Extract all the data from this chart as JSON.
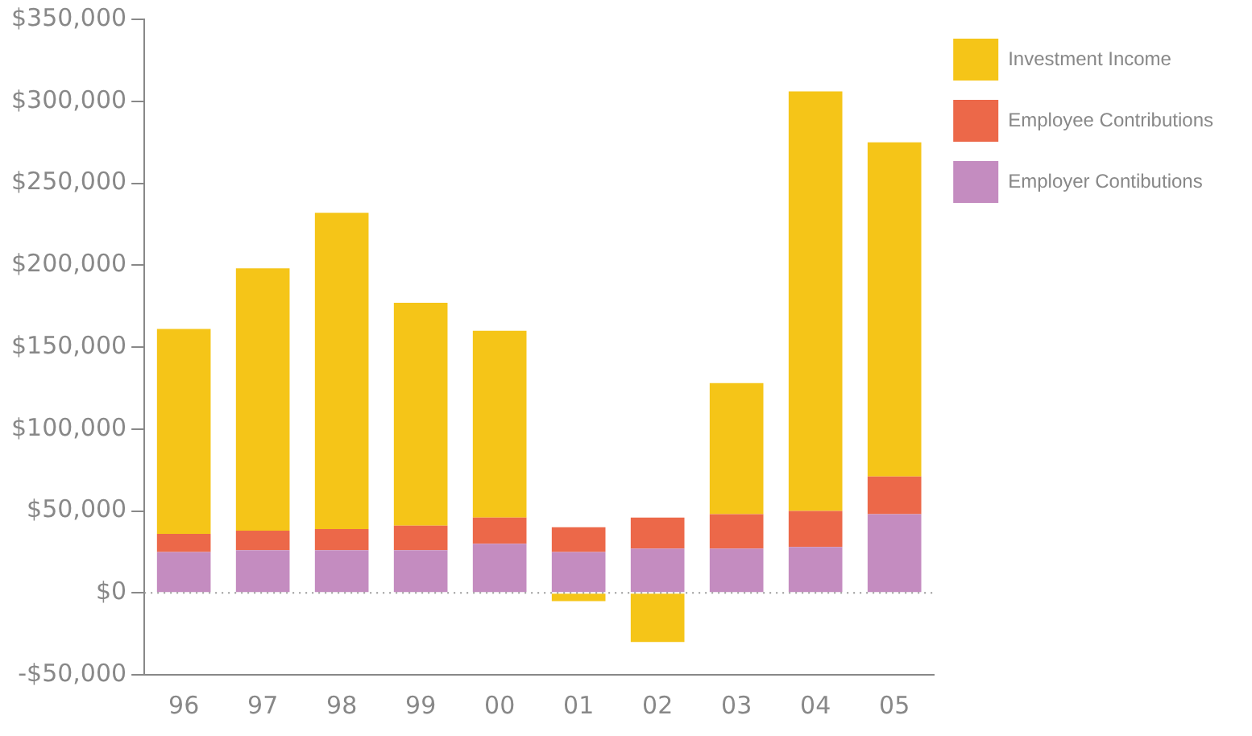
{
  "chart_data": {
    "type": "bar",
    "stacked": true,
    "categories": [
      "96",
      "97",
      "98",
      "99",
      "00",
      "01",
      "02",
      "03",
      "04",
      "05"
    ],
    "series": [
      {
        "name": "Employer Contibutions",
        "color": "#c48cc0",
        "values": [
          25000,
          26000,
          26000,
          26000,
          30000,
          25000,
          27000,
          27000,
          28000,
          48000
        ]
      },
      {
        "name": "Employee Contributions",
        "color": "#ec6849",
        "values": [
          11000,
          12000,
          13000,
          15000,
          16000,
          15000,
          19000,
          21000,
          22000,
          23000
        ]
      },
      {
        "name": "Investment Income",
        "color": "#f5c518",
        "values": [
          125000,
          160000,
          193000,
          136000,
          114000,
          -5000,
          -30000,
          80000,
          256000,
          204000
        ]
      }
    ],
    "ylim": [
      -50000,
      350000
    ],
    "yticks": [
      {
        "value": -50000,
        "label": "-$50,000"
      },
      {
        "value": 0,
        "label": "$0"
      },
      {
        "value": 50000,
        "label": "$50,000"
      },
      {
        "value": 100000,
        "label": "$100,000"
      },
      {
        "value": 150000,
        "label": "$150,000"
      },
      {
        "value": 200000,
        "label": "$200,000"
      },
      {
        "value": 250000,
        "label": "$250,000"
      },
      {
        "value": 300000,
        "label": "$300,000"
      },
      {
        "value": 350000,
        "label": "$350,000"
      }
    ],
    "ref_lines": [
      {
        "axis": "y",
        "value": 0,
        "color": "#999999",
        "line_style": "dotted"
      }
    ],
    "grid": false,
    "legend": "top right"
  }
}
